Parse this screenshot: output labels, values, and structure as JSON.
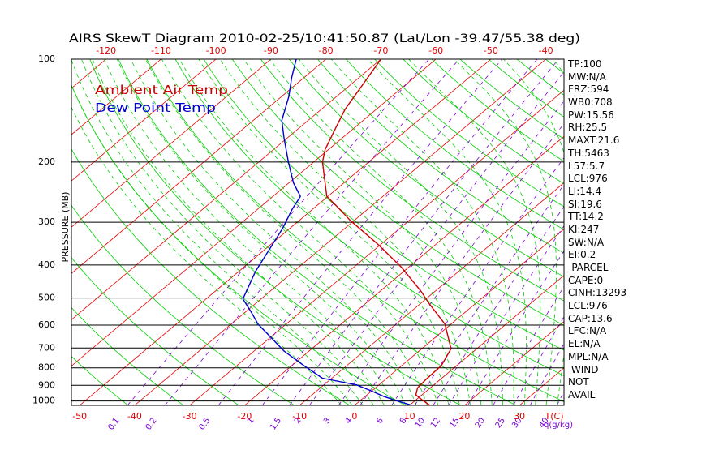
{
  "colors": {
    "background": "#ffffff",
    "axis_text": "#000000",
    "temperature_labels": "#e00000",
    "isotherm": "#e60000",
    "dry_adiabat": "#00d000",
    "moist_adiabat": "#00d000",
    "mixing_ratio": "#7a00d6",
    "isobar": "#000000",
    "temperature_profile": "#cc0000",
    "dew_point_profile": "#0000cc"
  },
  "stats_panel": [
    "TP:100",
    "MW:N/A",
    "FRZ:594",
    "WB0:708",
    "PW:15.56",
    "RH:25.5",
    "MAXT:21.6",
    "TH:5463",
    "L57:5.7",
    "LCL:976",
    "LI:14.4",
    "SI:19.6",
    "TT:14.2",
    "KI:247",
    "SW:N/A",
    "EI:0.2",
    "-PARCEL-",
    "CAPE:0",
    "CINH:13293",
    "LCL:976",
    "CAP:13.6",
    "LFC:N/A",
    "EL:N/A",
    "MPL:N/A",
    "-WIND-",
    "NOT",
    "AVAIL"
  ],
  "chart_data": {
    "type": "line",
    "title": "AIRS SkewT Diagram 2010-02-25/10:41:50.87 (Lat/Lon -39.47/55.38 deg)",
    "xlabel": "T(C)",
    "ylabel": "PRESSURE (MB)",
    "y_scale": "log",
    "ylim": [
      1030,
      100
    ],
    "xlim_bottom": [
      -51.5,
      38.1
    ],
    "xlim_top": [
      -126.3,
      -36.7
    ],
    "grid": true,
    "legend_position": "top-left",
    "y_ticks": [
      100,
      200,
      300,
      400,
      500,
      600,
      700,
      800,
      900,
      1000
    ],
    "x_ticks_top": [
      -120,
      -110,
      -100,
      -90,
      -80,
      -70,
      -60,
      -50,
      -40
    ],
    "x_ticks_bottom": [
      -50,
      -40,
      -30,
      -20,
      -10,
      0,
      10,
      20,
      30
    ],
    "mixing_ratio_label": "q(g/kg)",
    "mixing_ratio_ticks": [
      0.1,
      0.2,
      0.5,
      1,
      1.5,
      2,
      3,
      4,
      6,
      8,
      10,
      12,
      15,
      20,
      25,
      30,
      40
    ],
    "series": [
      {
        "name": "Ambient Air Temp",
        "pressure": [
          100,
          140,
          157,
          184,
          200,
          229,
          252,
          270,
          297,
          346,
          407,
          480,
          521,
          596,
          703,
          787,
          868,
          916,
          960,
          991,
          1030
        ],
        "temperature": [
          -70.0,
          -65.7,
          -63.6,
          -60.6,
          -58.4,
          -53.6,
          -50.2,
          -46.1,
          -40.6,
          -30.9,
          -21.2,
          -12.3,
          -8.2,
          -1.1,
          5.3,
          7.2,
          7.4,
          7.7,
          8.9,
          11.0,
          13.7
        ]
      },
      {
        "name": "Dew Point Temp",
        "pressure": [
          100,
          113,
          129,
          151,
          170,
          200,
          230,
          252,
          275,
          313,
          365,
          419,
          503,
          550,
          596,
          657,
          714,
          787,
          858,
          897,
          936,
          969,
          996,
          1030
        ],
        "temperature": [
          -85.4,
          -82.3,
          -78.6,
          -74.8,
          -70.6,
          -64.6,
          -59.2,
          -55.0,
          -53.7,
          -51.3,
          -49.0,
          -46.9,
          -43.3,
          -38.9,
          -35.1,
          -29.4,
          -24.6,
          -17.9,
          -11.7,
          -4.1,
          0.1,
          3.3,
          6.4,
          10.5
        ]
      }
    ]
  }
}
